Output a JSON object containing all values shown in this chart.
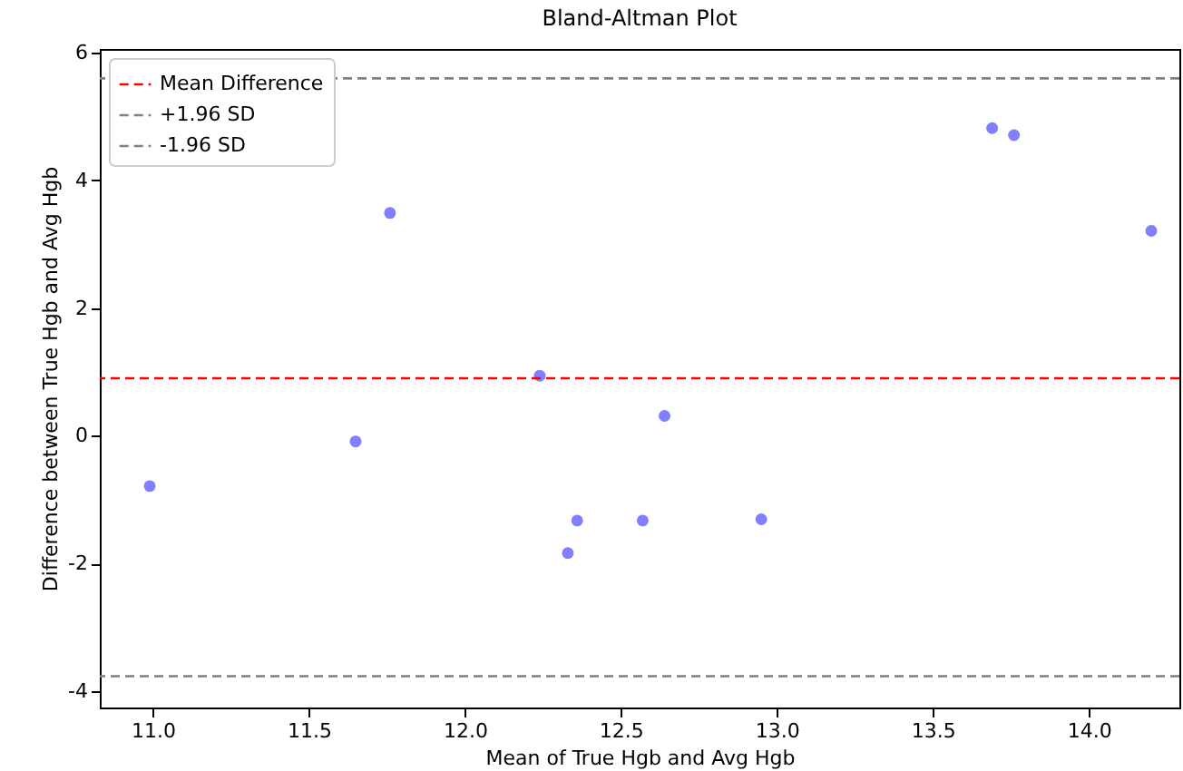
{
  "chart_data": {
    "type": "scatter",
    "title": "Bland-Altman Plot",
    "xlabel": "Mean of True Hgb and Avg Hgb",
    "ylabel": "Difference between True Hgb and Avg Hgb",
    "x": [
      10.99,
      11.65,
      11.76,
      12.24,
      12.33,
      12.36,
      12.57,
      12.64,
      12.95,
      13.69,
      13.76,
      14.2
    ],
    "series": [
      {
        "color": "#7f7fff",
        "values": [
          -0.79,
          -0.09,
          3.49,
          0.94,
          -1.84,
          -1.33,
          -1.33,
          0.31,
          -1.31,
          4.82,
          4.71,
          3.21
        ]
      }
    ],
    "ref_lines": [
      {
        "axis": "y",
        "value": 0.9,
        "label": "Mean Difference",
        "color": "#ff0000",
        "line_style": "dashed"
      },
      {
        "axis": "y",
        "value": 5.6,
        "label": "+1.96 SD",
        "color": "#808080",
        "line_style": "dashed"
      },
      {
        "axis": "y",
        "value": -3.77,
        "label": "-1.96 SD",
        "color": "#808080",
        "line_style": "dashed"
      }
    ],
    "xlim": [
      10.83,
      14.29
    ],
    "ylim": [
      -4.26,
      6.06
    ],
    "xticks": [
      {
        "value": 11,
        "label": "11.0"
      },
      {
        "value": 11.5,
        "label": "11.5"
      },
      {
        "value": 12,
        "label": "12.0"
      },
      {
        "value": 12.5,
        "label": "12.5"
      },
      {
        "value": 13,
        "label": "13.0"
      },
      {
        "value": 13.5,
        "label": "13.5"
      },
      {
        "value": 14,
        "label": "14.0"
      }
    ],
    "yticks": [
      -4,
      -2,
      0,
      2,
      4,
      6
    ],
    "marker": "circle",
    "legend": "top left",
    "grid": false
  }
}
